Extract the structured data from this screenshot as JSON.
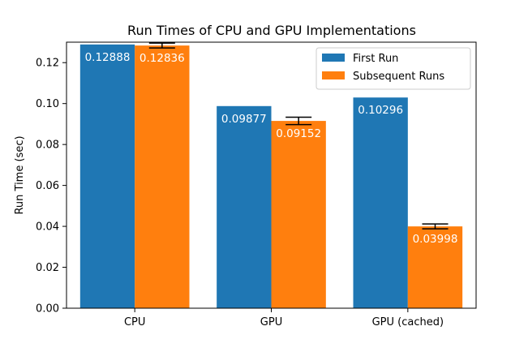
{
  "chart_data": {
    "type": "bar",
    "title": "Run Times of CPU and GPU Implementations",
    "xlabel": "",
    "ylabel": "Run Time (sec)",
    "categories": [
      "CPU",
      "GPU",
      "GPU (cached)"
    ],
    "ylim": [
      0,
      0.13
    ],
    "yticks": [
      "0.00",
      "0.02",
      "0.04",
      "0.06",
      "0.08",
      "0.10",
      "0.12"
    ],
    "grid": false,
    "legend_position": "top-right",
    "series": [
      {
        "name": "First Run",
        "color": "#1f77b4",
        "values": [
          0.12888,
          0.09877,
          0.10296
        ],
        "labels": [
          "0.12888",
          "0.09877",
          "0.10296"
        ],
        "errors": [
          null,
          null,
          null
        ]
      },
      {
        "name": "Subsequent Runs",
        "color": "#ff7f0e",
        "values": [
          0.12836,
          0.09152,
          0.03998
        ],
        "labels": [
          "0.12836",
          "0.09152",
          "0.03998"
        ],
        "errors": [
          0.0012,
          0.0018,
          0.0012
        ]
      }
    ]
  }
}
